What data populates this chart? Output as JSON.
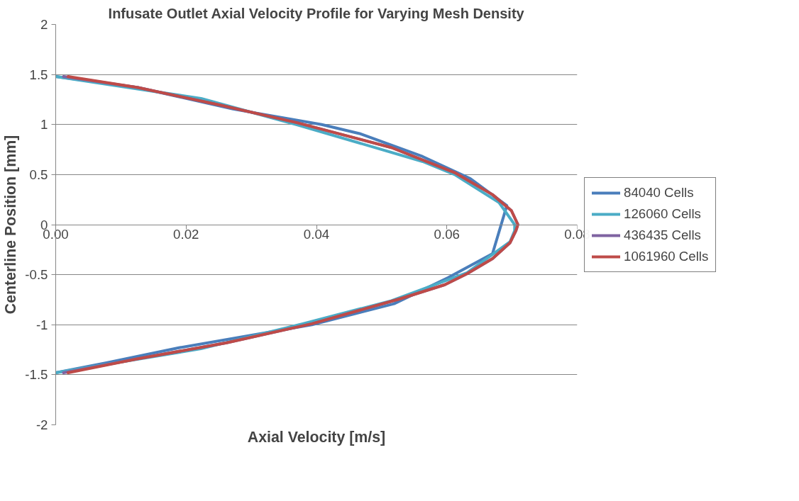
{
  "chart_data": {
    "type": "line",
    "title": "Infusate Outlet Axial Velocity Profile for Varying Mesh Density",
    "xlabel": "Axial Velocity [m/s]",
    "ylabel": "Centerline Position [mm]",
    "xlim": [
      0,
      0.08
    ],
    "xticks": [
      {
        "value": 0,
        "label": "0.00"
      },
      {
        "value": 0.02,
        "label": "0.02"
      },
      {
        "value": 0.04,
        "label": "0.04"
      },
      {
        "value": 0.06,
        "label": "0.06"
      },
      {
        "value": 0.08,
        "label": "0.08"
      }
    ],
    "ylim": [
      -2,
      2
    ],
    "yticks": [
      -2,
      -1.5,
      -1,
      -0.5,
      0,
      0.5,
      1,
      1.5,
      2
    ],
    "grid": "y",
    "legend": "right",
    "marker": "none",
    "line_style": "solid",
    "series": [
      {
        "name": "84040 Cells",
        "color": "#4a7ebb",
        "x": [
          0,
          0.0126,
          0.0272,
          0.0408,
          0.0466,
          0.0563,
          0.0636,
          0.0692,
          0.067,
          0.0602,
          0.0519,
          0.0393,
          0.0189,
          0.0078,
          0
        ],
        "values": [
          1.48,
          1.37,
          1.155,
          1.0,
          0.91,
          0.68,
          0.46,
          0.19,
          -0.29,
          -0.53,
          -0.79,
          -1.0,
          -1.23,
          -1.38,
          -1.48
        ]
      },
      {
        "name": "126060 Cells",
        "color": "#4bacc6",
        "x": [
          0,
          0.0223,
          0.0369,
          0.0563,
          0.0612,
          0.068,
          0.0704,
          0.0704,
          0.0697,
          0.0631,
          0.0515,
          0.0379,
          0.0223,
          0
        ],
        "values": [
          1.48,
          1.26,
          1.0,
          0.63,
          0.5,
          0.22,
          0.0,
          -0.06,
          -0.17,
          -0.48,
          -0.76,
          -0.99,
          -1.24,
          -1.48
        ]
      },
      {
        "name": "436435 Cells",
        "color": "#7f63a1",
        "x": [
          0.0012,
          0.0126,
          0.0252,
          0.0369,
          0.0515,
          0.0612,
          0.067,
          0.0699,
          0.0709,
          0.0706,
          0.0697,
          0.067,
          0.0631,
          0.0597,
          0.0529,
          0.0393,
          0.0262,
          0.0126,
          0.0012
        ],
        "values": [
          1.48,
          1.37,
          1.195,
          1.02,
          0.77,
          0.52,
          0.3,
          0.14,
          0.0,
          -0.06,
          -0.18,
          -0.34,
          -0.49,
          -0.6,
          -0.74,
          -0.99,
          -1.18,
          -1.34,
          -1.48
        ]
      },
      {
        "name": "1061960 Cells",
        "color": "#be4b48",
        "x": [
          0.0019,
          0.0126,
          0.0252,
          0.0369,
          0.0515,
          0.0612,
          0.067,
          0.0699,
          0.0709,
          0.0706,
          0.0697,
          0.067,
          0.0631,
          0.0597,
          0.0529,
          0.0393,
          0.0262,
          0.0126,
          0.0019
        ],
        "values": [
          1.48,
          1.37,
          1.195,
          1.02,
          0.77,
          0.52,
          0.3,
          0.14,
          0.0,
          -0.06,
          -0.18,
          -0.34,
          -0.49,
          -0.6,
          -0.74,
          -0.99,
          -1.18,
          -1.34,
          -1.48
        ]
      }
    ]
  }
}
